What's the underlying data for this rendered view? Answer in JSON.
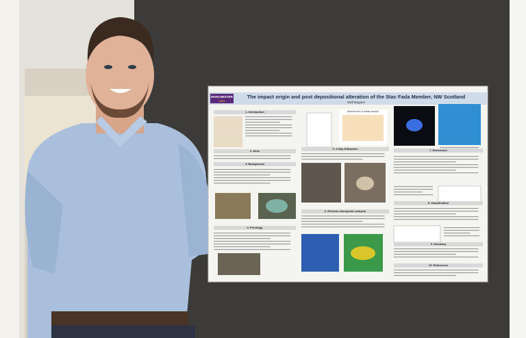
{
  "poster": {
    "logo": "MANCHESTER",
    "logo_year": "1824",
    "title": "The impact origin and post depositional alteration of the Stac Fada Member, NW Scotland",
    "author": "Niall Maguire",
    "chart_caption": "Mineral wt% of whole sample",
    "sections": [
      "1. Introduction",
      "2. Aims",
      "3. Background",
      "4. Petrology",
      "5. X-Ray Diffraction",
      "6. Electron microprobe analysis",
      "7. Discussion",
      "8. Classification",
      "9. Summary",
      "10. References"
    ]
  }
}
